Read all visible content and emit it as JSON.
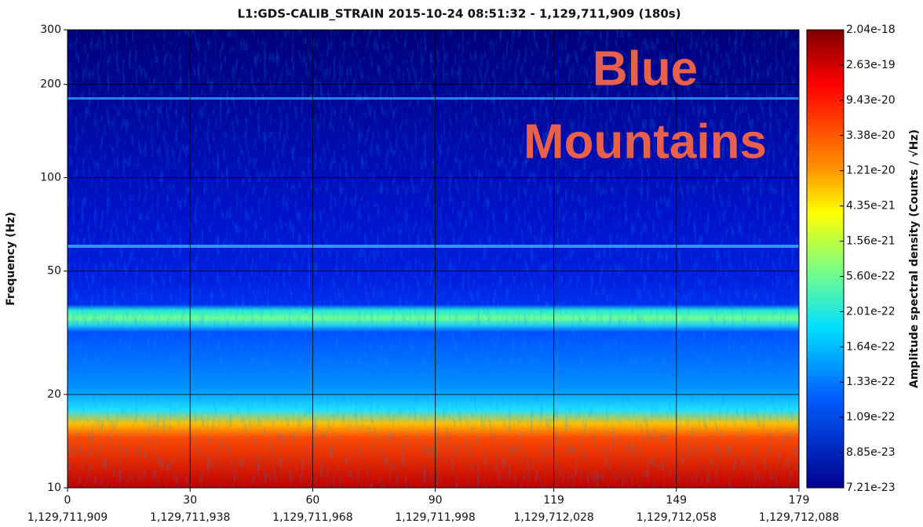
{
  "chart_data": {
    "type": "spectrogram",
    "title": "L1:GDS-CALIB_STRAIN 2015-10-24 08:51:32 - 1,129,711,909 (180s)",
    "ylabel": "Frequency (Hz)",
    "ylog": true,
    "ylim": [
      10,
      300
    ],
    "yticks": [
      10,
      20,
      50,
      100,
      200,
      300
    ],
    "xlim": [
      0,
      179
    ],
    "xticks": [
      0,
      30,
      60,
      90,
      119,
      149,
      179
    ],
    "xtick_gps": [
      "1,129,711,909",
      "1,129,711,938",
      "1,129,711,968",
      "1,129,711,998",
      "1,129,712,028",
      "1,129,712,058",
      "1,129,712,088"
    ],
    "grid": true,
    "colorbar": {
      "label": "Amplitude spectral density (Counts / √Hz)",
      "ticks": [
        2.04e-18,
        2.63e-19,
        9.43e-20,
        3.38e-20,
        1.21e-20,
        4.35e-21,
        1.56e-21,
        {
          "value": 5.6e-22,
          "label": "5.60e-22"
        },
        2.01e-22,
        1.64e-22,
        1.33e-22,
        1.09e-22,
        8.85e-23,
        7.21e-23
      ]
    },
    "annotation": {
      "lines": [
        "Blue",
        "Mountains"
      ],
      "color": "#e8604c"
    }
  }
}
